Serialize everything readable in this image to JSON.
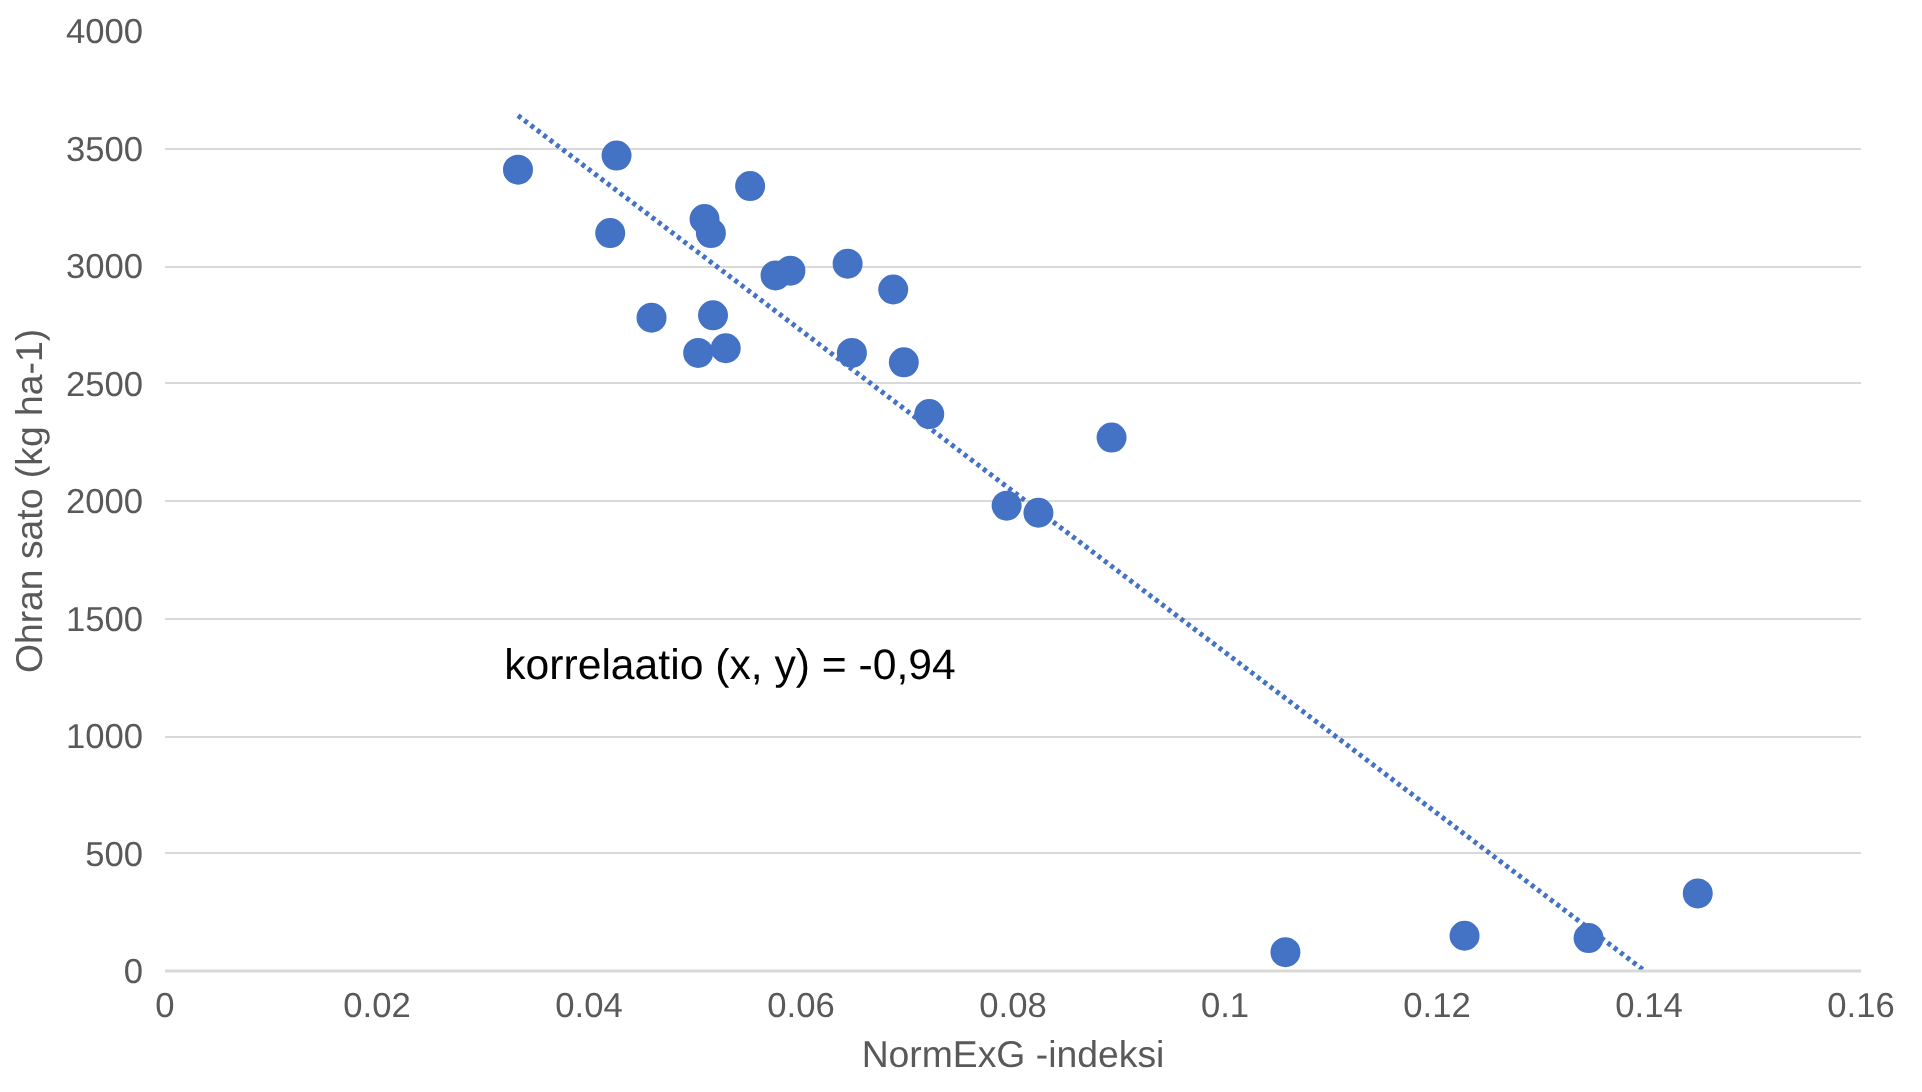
{
  "chart_data": {
    "type": "scatter",
    "xlabel": "NormExG -indeksi",
    "ylabel": "Ohran sato (kg ha-1)",
    "annotations": [
      "korrelaatio (x, y) = -0,94"
    ],
    "series": [
      {
        "color": "#4472c4",
        "marker": "circle",
        "x": [
          0.0333,
          0.0426,
          0.042,
          0.0459,
          0.0509,
          0.0515,
          0.0517,
          0.0503,
          0.0529,
          0.0552,
          0.0576,
          0.059,
          0.0644,
          0.0648,
          0.0687,
          0.0697,
          0.0721,
          0.0794,
          0.0824,
          0.0893,
          0.1057,
          0.1226,
          0.1343,
          0.1446
        ],
        "values": [
          3410,
          3470,
          3140,
          2780,
          3200,
          3140,
          2790,
          2630,
          2650,
          3340,
          2960,
          2980,
          3010,
          2630,
          2900,
          2590,
          2370,
          1980,
          1950,
          2270,
          80,
          150,
          140,
          330
        ]
      },
      {
        "type": "line",
        "color": "#4472c4",
        "line_style": "dotted",
        "x": [
          0.0333,
          0.1396
        ],
        "values": [
          3640,
          0
        ]
      }
    ],
    "xlim": [
      0,
      0.16
    ],
    "xticks": [
      0,
      0.02,
      0.04,
      0.06,
      0.08,
      0.1,
      0.12,
      0.14,
      0.16
    ],
    "ylim": [
      0,
      4000
    ],
    "yticks": [
      0,
      500,
      1000,
      1500,
      2000,
      2500,
      3000,
      3500,
      4000
    ],
    "grid": "y"
  }
}
